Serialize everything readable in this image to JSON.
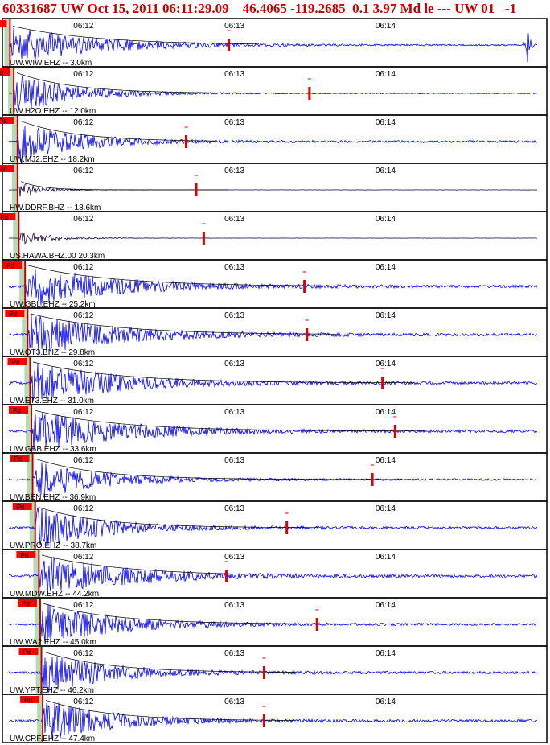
{
  "header": {
    "title": "60331687 UW Oct 15, 2011 06:11:29.09    46.4065 -119.2685  0.1 3.97 Md le --- UW 01   -1"
  },
  "colors": {
    "trace": "#0000ff",
    "event_trace": "#14003c",
    "pick_box": "#ff0000",
    "green_band": "#b4dcb4",
    "pick_line": "#c00000",
    "coda_marker": "#e00000",
    "border": "#000000"
  },
  "chart_data": {
    "type": "line",
    "title": "60331687 UW Oct 15, 2011 06:11:29.09    46.4065 -119.2685  0.1 3.97 Md le --- UW 01   -1",
    "time_ticks": [
      "06:12",
      "06:13",
      "06:14"
    ],
    "pick_label": "Pd",
    "traces": [
      {
        "label": "UW.WIW.EHZ -- 3.0km",
        "p_time": "06:11:30.0",
        "coda_end": "06:12:57",
        "amplitude": 0.9,
        "decay": 0.03,
        "noise": 0.03,
        "envelope": true,
        "event_color": false,
        "tail_burst": true
      },
      {
        "label": "UW.H2O.EHZ -- 12.0km",
        "p_time": "06:11:31.5",
        "coda_end": "06:13:29",
        "amplitude": 1.0,
        "decay": 0.045,
        "noise": 0.02,
        "envelope": true,
        "event_color": false,
        "tail_burst": false
      },
      {
        "label": "UW.MJ2.EHZ -- 18.2km",
        "p_time": "06:11:33.0",
        "coda_end": "06:12:40",
        "amplitude": 1.0,
        "decay": 0.045,
        "noise": 0.05,
        "envelope": true,
        "event_color": false,
        "tail_burst": false
      },
      {
        "label": "HW.DDRF.BHZ -- 18.6km",
        "p_time": "06:11:33.0",
        "coda_end": "06:12:44",
        "amplitude": 0.45,
        "decay": 0.12,
        "noise": 0.005,
        "envelope": true,
        "event_color": true,
        "tail_burst": false
      },
      {
        "label": "US.HAWA.BHZ.00 20.3km",
        "p_time": "06:11:33.5",
        "coda_end": "06:12:47",
        "amplitude": 0.35,
        "decay": 0.08,
        "noise": 0.005,
        "envelope": false,
        "event_color": true,
        "tail_burst": false
      },
      {
        "label": "UW.GBL.EHZ -- 25.2km",
        "p_time": "06:11:36.0",
        "coda_end": "06:13:27",
        "amplitude": 1.0,
        "decay": 0.03,
        "noise": 0.06,
        "envelope": true,
        "event_color": false,
        "tail_burst": false
      },
      {
        "label": "UW.OT3.EHZ -- 29.8km",
        "p_time": "06:11:37.0",
        "coda_end": "06:13:28",
        "amplitude": 1.0,
        "decay": 0.03,
        "noise": 0.06,
        "envelope": true,
        "event_color": false,
        "tail_burst": false
      },
      {
        "label": "UW.ET3.EHZ -- 31.0km",
        "p_time": "06:11:38.0",
        "coda_end": "06:13:58",
        "amplitude": 1.0,
        "decay": 0.03,
        "noise": 0.06,
        "envelope": true,
        "event_color": false,
        "tail_burst": false
      },
      {
        "label": "UW.GBB.EHZ -- 33.6km",
        "p_time": "06:11:38.5",
        "coda_end": "06:14:03",
        "amplitude": 1.0,
        "decay": 0.03,
        "noise": 0.06,
        "envelope": true,
        "event_color": false,
        "tail_burst": false
      },
      {
        "label": "UW.BEN.EHZ -- 36.9km",
        "p_time": "06:11:39.0",
        "coda_end": "06:13:54",
        "amplitude": 1.0,
        "decay": 0.04,
        "noise": 0.04,
        "envelope": true,
        "event_color": false,
        "tail_burst": false
      },
      {
        "label": "UW.PRO.EHZ -- 38.7km",
        "p_time": "06:11:40.0",
        "coda_end": "06:13:20",
        "amplitude": 1.0,
        "decay": 0.04,
        "noise": 0.06,
        "envelope": true,
        "event_color": false,
        "tail_burst": false
      },
      {
        "label": "UW.MDW.EHZ -- 44.2km",
        "p_time": "06:11:41.5",
        "coda_end": "06:12:56",
        "amplitude": 1.0,
        "decay": 0.03,
        "noise": 0.06,
        "envelope": true,
        "event_color": false,
        "tail_burst": false
      },
      {
        "label": "UW.WA2.EHZ -- 45.0km",
        "p_time": "06:11:42.0",
        "coda_end": "06:13:32",
        "amplitude": 1.0,
        "decay": 0.035,
        "noise": 0.05,
        "envelope": true,
        "event_color": false,
        "tail_burst": false
      },
      {
        "label": "UW.YPT.EHZ -- 46.2km",
        "p_time": "06:11:42.5",
        "coda_end": "06:13:11",
        "amplitude": 1.0,
        "decay": 0.04,
        "noise": 0.06,
        "envelope": true,
        "event_color": false,
        "tail_burst": false
      },
      {
        "label": "UW.CRF.EHZ -- 47.4km",
        "p_time": "06:11:43.0",
        "coda_end": "06:13:11",
        "amplitude": 1.0,
        "decay": 0.04,
        "noise": 0.06,
        "envelope": true,
        "event_color": false,
        "tail_burst": false
      }
    ]
  }
}
